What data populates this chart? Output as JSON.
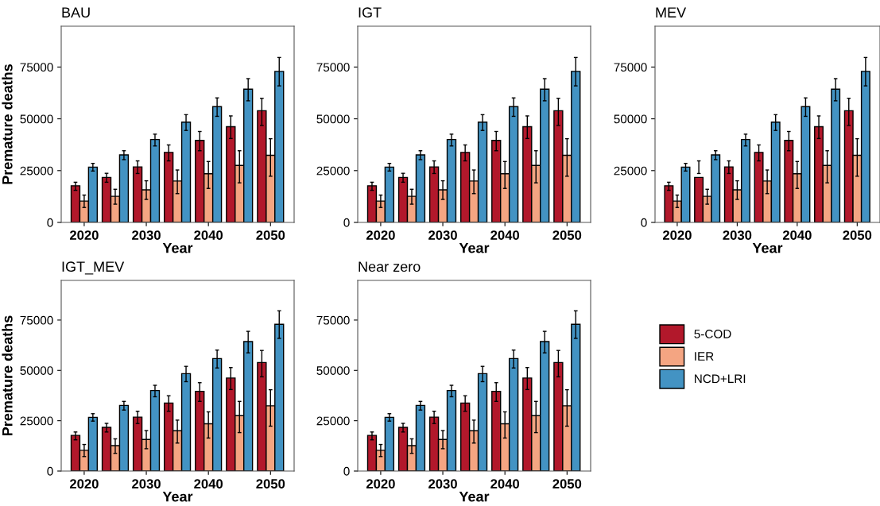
{
  "chart_data": [
    {
      "type": "bar",
      "title": "BAU",
      "xlabel": "Year",
      "ylabel": "Premature deaths",
      "x": [
        2020,
        2025,
        2030,
        2035,
        2040,
        2045,
        2050
      ],
      "xlim": [
        2016.3,
        2053.8
      ],
      "xticks": [
        2020,
        2030,
        2040,
        2050
      ],
      "ylim": [
        0,
        94700
      ],
      "yticks": [
        0,
        25000,
        50000,
        75000
      ],
      "grid": false,
      "legend": false,
      "series": [
        {
          "color": "#b2182b",
          "values": [
            17700,
            21700,
            26800,
            33800,
            39600,
            46200,
            53900
          ],
          "errors": [
            [
              15500,
              19400
            ],
            [
              19400,
              23700
            ],
            [
              23600,
              29700
            ],
            [
              29700,
              37400
            ],
            [
              34600,
              43900
            ],
            [
              40500,
              51400
            ],
            [
              46800,
              59900
            ]
          ]
        },
        {
          "color": "#f4a582",
          "values": [
            10300,
            12600,
            15700,
            20000,
            23500,
            27500,
            32400
          ],
          "errors": [
            [
              7200,
              13200
            ],
            [
              8800,
              16000
            ],
            [
              11100,
              20100
            ],
            [
              13900,
              25300
            ],
            [
              16400,
              29400
            ],
            [
              19100,
              34600
            ],
            [
              22300,
              40400
            ]
          ]
        },
        {
          "color": "#4393c3",
          "values": [
            26700,
            32600,
            40000,
            48400,
            55900,
            64300,
            72900
          ],
          "errors": [
            [
              24800,
              28500
            ],
            [
              30300,
              34600
            ],
            [
              36900,
              42600
            ],
            [
              44400,
              52000
            ],
            [
              51200,
              60100
            ],
            [
              58700,
              69400
            ],
            [
              65900,
              79600
            ]
          ]
        }
      ]
    },
    {
      "type": "bar",
      "title": "IGT",
      "xlabel": "Year",
      "x": [
        2020,
        2025,
        2030,
        2035,
        2040,
        2045,
        2050
      ],
      "xlim": [
        2016.3,
        2053.8
      ],
      "xticks": [
        2020,
        2030,
        2040,
        2050
      ],
      "ylim": [
        0,
        94700
      ],
      "yticks": [
        0,
        25000,
        50000,
        75000
      ],
      "grid": false,
      "legend": false,
      "series": [
        {
          "color": "#b2182b",
          "values": [
            17700,
            21700,
            26800,
            33800,
            39600,
            46200,
            53900
          ],
          "errors": [
            [
              15500,
              19400
            ],
            [
              19400,
              23700
            ],
            [
              23600,
              29700
            ],
            [
              29700,
              37400
            ],
            [
              34600,
              43900
            ],
            [
              40500,
              51400
            ],
            [
              46800,
              59900
            ]
          ]
        },
        {
          "color": "#f4a582",
          "values": [
            10300,
            12600,
            15700,
            20000,
            23500,
            27500,
            32400
          ],
          "errors": [
            [
              7200,
              13200
            ],
            [
              8800,
              16000
            ],
            [
              11100,
              20100
            ],
            [
              13900,
              25300
            ],
            [
              16400,
              29400
            ],
            [
              19100,
              34600
            ],
            [
              22300,
              40400
            ]
          ]
        },
        {
          "color": "#4393c3",
          "values": [
            26700,
            32600,
            40000,
            48400,
            55900,
            64300,
            72900
          ],
          "errors": [
            [
              24800,
              28500
            ],
            [
              30300,
              34600
            ],
            [
              36900,
              42600
            ],
            [
              44400,
              52000
            ],
            [
              51200,
              60100
            ],
            [
              58700,
              69400
            ],
            [
              65900,
              79600
            ]
          ]
        }
      ]
    },
    {
      "type": "bar",
      "title": "MEV",
      "xlabel": "Year",
      "x": [
        2020,
        2025,
        2030,
        2035,
        2040,
        2045,
        2050
      ],
      "xlim": [
        2016.3,
        2053.8
      ],
      "xticks": [
        2020,
        2030,
        2040,
        2050
      ],
      "ylim": [
        0,
        94700
      ],
      "yticks": [
        0,
        25000,
        50000,
        75000
      ],
      "grid": false,
      "legend": false,
      "series": [
        {
          "color": "#b2182b",
          "values": [
            17700,
            21700,
            26800,
            33800,
            39600,
            46200,
            53900
          ],
          "errors": [
            [
              15500,
              19400
            ],
            [
              23600,
              29700
            ],
            [
              23600,
              29700
            ],
            [
              29700,
              37400
            ],
            [
              34600,
              43900
            ],
            [
              40500,
              51400
            ],
            [
              46800,
              59900
            ]
          ]
        },
        {
          "color": "#f4a582",
          "values": [
            10300,
            12600,
            15700,
            20000,
            23500,
            27500,
            32400
          ],
          "errors": [
            [
              7200,
              13200
            ],
            [
              8800,
              16000
            ],
            [
              11100,
              20100
            ],
            [
              13900,
              25300
            ],
            [
              16400,
              29400
            ],
            [
              19100,
              34600
            ],
            [
              22300,
              40400
            ]
          ]
        },
        {
          "color": "#4393c3",
          "values": [
            26700,
            32600,
            40000,
            48400,
            55900,
            64300,
            72900
          ],
          "errors": [
            [
              24800,
              28500
            ],
            [
              30300,
              34600
            ],
            [
              36900,
              42600
            ],
            [
              44400,
              52000
            ],
            [
              51200,
              60100
            ],
            [
              58700,
              69400
            ],
            [
              65900,
              79600
            ]
          ]
        }
      ]
    },
    {
      "type": "bar",
      "title": "IGT_MEV",
      "xlabel": "Year",
      "ylabel": "Premature deaths",
      "x": [
        2020,
        2025,
        2030,
        2035,
        2040,
        2045,
        2050
      ],
      "xlim": [
        2016.3,
        2053.8
      ],
      "xticks": [
        2020,
        2030,
        2040,
        2050
      ],
      "ylim": [
        0,
        94700
      ],
      "yticks": [
        0,
        25000,
        50000,
        75000
      ],
      "grid": false,
      "legend": false,
      "series": [
        {
          "color": "#b2182b",
          "values": [
            17700,
            21700,
            26800,
            33800,
            39600,
            46200,
            53900
          ],
          "errors": [
            [
              15500,
              19400
            ],
            [
              19400,
              23700
            ],
            [
              23600,
              29700
            ],
            [
              29700,
              37400
            ],
            [
              34600,
              43900
            ],
            [
              40500,
              51400
            ],
            [
              46800,
              59900
            ]
          ]
        },
        {
          "color": "#f4a582",
          "values": [
            10300,
            12600,
            15700,
            20000,
            23500,
            27500,
            32400
          ],
          "errors": [
            [
              7200,
              13200
            ],
            [
              8800,
              16000
            ],
            [
              11100,
              20100
            ],
            [
              13900,
              25300
            ],
            [
              16400,
              29400
            ],
            [
              19100,
              34600
            ],
            [
              22300,
              40400
            ]
          ]
        },
        {
          "color": "#4393c3",
          "values": [
            26700,
            32600,
            40000,
            48400,
            55900,
            64300,
            72900
          ],
          "errors": [
            [
              24800,
              28500
            ],
            [
              30300,
              34600
            ],
            [
              36900,
              42600
            ],
            [
              44400,
              52000
            ],
            [
              51200,
              60100
            ],
            [
              58700,
              69400
            ],
            [
              65900,
              79600
            ]
          ]
        }
      ]
    },
    {
      "type": "bar",
      "title": "Near zero",
      "xlabel": "Year",
      "x": [
        2020,
        2025,
        2030,
        2035,
        2040,
        2045,
        2050
      ],
      "xlim": [
        2016.3,
        2053.8
      ],
      "xticks": [
        2020,
        2030,
        2040,
        2050
      ],
      "ylim": [
        0,
        94700
      ],
      "yticks": [
        0,
        25000,
        50000,
        75000
      ],
      "grid": false,
      "legend": "right",
      "series": [
        {
          "name": "5-COD",
          "color": "#b2182b",
          "values": [
            17700,
            21700,
            26800,
            33800,
            39600,
            46200,
            53900
          ],
          "errors": [
            [
              15500,
              19400
            ],
            [
              19400,
              23700
            ],
            [
              23600,
              29700
            ],
            [
              29700,
              37400
            ],
            [
              34600,
              43900
            ],
            [
              40500,
              51400
            ],
            [
              46800,
              59900
            ]
          ]
        },
        {
          "name": "IER",
          "color": "#f4a582",
          "values": [
            10300,
            12600,
            15700,
            20000,
            23500,
            27500,
            32400
          ],
          "errors": [
            [
              7200,
              13200
            ],
            [
              8800,
              16000
            ],
            [
              11100,
              20100
            ],
            [
              13900,
              25300
            ],
            [
              16400,
              29400
            ],
            [
              19100,
              34600
            ],
            [
              22300,
              40400
            ]
          ]
        },
        {
          "name": "NCD+LRI",
          "color": "#4393c3",
          "values": [
            26700,
            32600,
            40000,
            48400,
            55900,
            64300,
            72900
          ],
          "errors": [
            [
              24800,
              28500
            ],
            [
              30300,
              34600
            ],
            [
              36900,
              42600
            ],
            [
              44400,
              52000
            ],
            [
              51200,
              60100
            ],
            [
              58700,
              69400
            ],
            [
              65900,
              79600
            ]
          ]
        }
      ]
    }
  ]
}
